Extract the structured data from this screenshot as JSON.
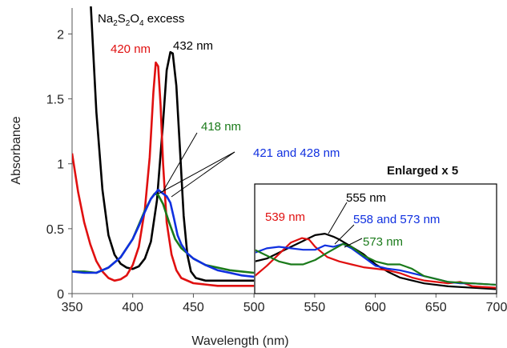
{
  "chart_data": {
    "type": "line",
    "xlabel": "Wavelength (nm)",
    "ylabel": "Absorbance",
    "xlim": [
      350,
      700
    ],
    "ylim": [
      0,
      2.2
    ],
    "x_ticks": [
      "350",
      "400",
      "450",
      "500",
      "550",
      "600",
      "650",
      "700"
    ],
    "y_ticks": [
      "0",
      "0.5",
      "1",
      "1.5",
      "2"
    ],
    "grid": false,
    "colors": {
      "black": "#000000",
      "red": "#e01010",
      "green": "#1a7a1a",
      "blue": "#1030e0"
    },
    "main_series": [
      {
        "color": "black",
        "points": [
          [
            350,
            3.0
          ],
          [
            360,
            2.6
          ],
          [
            365,
            2.3
          ],
          [
            370,
            1.4
          ],
          [
            375,
            0.8
          ],
          [
            380,
            0.45
          ],
          [
            385,
            0.3
          ],
          [
            390,
            0.23
          ],
          [
            395,
            0.2
          ],
          [
            400,
            0.19
          ],
          [
            405,
            0.21
          ],
          [
            410,
            0.27
          ],
          [
            415,
            0.4
          ],
          [
            420,
            0.72
          ],
          [
            425,
            1.32
          ],
          [
            428,
            1.72
          ],
          [
            431,
            1.86
          ],
          [
            433,
            1.85
          ],
          [
            436,
            1.6
          ],
          [
            439,
            1.1
          ],
          [
            442,
            0.6
          ],
          [
            445,
            0.3
          ],
          [
            448,
            0.17
          ],
          [
            452,
            0.12
          ],
          [
            460,
            0.1
          ],
          [
            480,
            0.1
          ],
          [
            500,
            0.1
          ]
        ]
      },
      {
        "color": "red",
        "points": [
          [
            350,
            1.08
          ],
          [
            355,
            0.78
          ],
          [
            360,
            0.55
          ],
          [
            365,
            0.38
          ],
          [
            370,
            0.25
          ],
          [
            375,
            0.17
          ],
          [
            380,
            0.12
          ],
          [
            385,
            0.1
          ],
          [
            390,
            0.11
          ],
          [
            395,
            0.14
          ],
          [
            400,
            0.22
          ],
          [
            405,
            0.36
          ],
          [
            410,
            0.65
          ],
          [
            414,
            1.05
          ],
          [
            417,
            1.55
          ],
          [
            419,
            1.78
          ],
          [
            421,
            1.75
          ],
          [
            423,
            1.45
          ],
          [
            425,
            1.0
          ],
          [
            428,
            0.55
          ],
          [
            432,
            0.3
          ],
          [
            436,
            0.18
          ],
          [
            440,
            0.12
          ],
          [
            450,
            0.08
          ],
          [
            470,
            0.06
          ],
          [
            500,
            0.06
          ]
        ]
      },
      {
        "color": "green",
        "points": [
          [
            350,
            0.17
          ],
          [
            360,
            0.17
          ],
          [
            370,
            0.16
          ],
          [
            380,
            0.2
          ],
          [
            390,
            0.28
          ],
          [
            400,
            0.42
          ],
          [
            405,
            0.53
          ],
          [
            410,
            0.64
          ],
          [
            415,
            0.73
          ],
          [
            418,
            0.77
          ],
          [
            421,
            0.76
          ],
          [
            425,
            0.69
          ],
          [
            430,
            0.55
          ],
          [
            435,
            0.42
          ],
          [
            440,
            0.35
          ],
          [
            450,
            0.27
          ],
          [
            460,
            0.22
          ],
          [
            470,
            0.2
          ],
          [
            480,
            0.18
          ],
          [
            490,
            0.17
          ],
          [
            500,
            0.16
          ]
        ]
      },
      {
        "color": "blue",
        "points": [
          [
            350,
            0.17
          ],
          [
            360,
            0.16
          ],
          [
            370,
            0.16
          ],
          [
            380,
            0.2
          ],
          [
            390,
            0.28
          ],
          [
            400,
            0.42
          ],
          [
            405,
            0.52
          ],
          [
            410,
            0.63
          ],
          [
            415,
            0.73
          ],
          [
            421,
            0.8
          ],
          [
            425,
            0.77
          ],
          [
            428,
            0.75
          ],
          [
            431,
            0.7
          ],
          [
            434,
            0.58
          ],
          [
            437,
            0.45
          ],
          [
            440,
            0.38
          ],
          [
            445,
            0.31
          ],
          [
            450,
            0.27
          ],
          [
            460,
            0.22
          ],
          [
            470,
            0.18
          ],
          [
            480,
            0.16
          ],
          [
            490,
            0.14
          ],
          [
            500,
            0.13
          ]
        ]
      }
    ],
    "inset": {
      "title": "Enlarged x 5",
      "xlim": [
        500,
        700
      ],
      "ylim": [
        0,
        0.75
      ],
      "series": [
        {
          "color": "black",
          "points": [
            [
              500,
              0.22
            ],
            [
              510,
              0.24
            ],
            [
              520,
              0.28
            ],
            [
              530,
              0.32
            ],
            [
              540,
              0.36
            ],
            [
              550,
              0.4
            ],
            [
              558,
              0.41
            ],
            [
              565,
              0.39
            ],
            [
              570,
              0.37
            ],
            [
              580,
              0.32
            ],
            [
              590,
              0.27
            ],
            [
              600,
              0.2
            ],
            [
              610,
              0.15
            ],
            [
              620,
              0.11
            ],
            [
              630,
              0.09
            ],
            [
              640,
              0.07
            ],
            [
              660,
              0.05
            ],
            [
              680,
              0.04
            ],
            [
              700,
              0.03
            ]
          ]
        },
        {
          "color": "red",
          "points": [
            [
              500,
              0.12
            ],
            [
              510,
              0.19
            ],
            [
              520,
              0.27
            ],
            [
              530,
              0.35
            ],
            [
              539,
              0.38
            ],
            [
              545,
              0.37
            ],
            [
              550,
              0.32
            ],
            [
              560,
              0.25
            ],
            [
              570,
              0.22
            ],
            [
              580,
              0.2
            ],
            [
              590,
              0.18
            ],
            [
              600,
              0.17
            ],
            [
              610,
              0.16
            ],
            [
              620,
              0.14
            ],
            [
              630,
              0.11
            ],
            [
              640,
              0.09
            ],
            [
              650,
              0.08
            ],
            [
              660,
              0.07
            ],
            [
              670,
              0.08
            ],
            [
              680,
              0.05
            ],
            [
              700,
              0.04
            ]
          ]
        },
        {
          "color": "blue",
          "points": [
            [
              500,
              0.28
            ],
            [
              510,
              0.31
            ],
            [
              520,
              0.32
            ],
            [
              530,
              0.31
            ],
            [
              540,
              0.3
            ],
            [
              550,
              0.3
            ],
            [
              558,
              0.33
            ],
            [
              565,
              0.32
            ],
            [
              573,
              0.34
            ],
            [
              580,
              0.31
            ],
            [
              590,
              0.25
            ],
            [
              600,
              0.19
            ],
            [
              610,
              0.17
            ],
            [
              620,
              0.16
            ],
            [
              630,
              0.14
            ],
            [
              640,
              0.12
            ],
            [
              650,
              0.1
            ],
            [
              660,
              0.08
            ],
            [
              670,
              0.07
            ],
            [
              680,
              0.07
            ],
            [
              700,
              0.06
            ]
          ]
        },
        {
          "color": "green",
          "points": [
            [
              500,
              0.3
            ],
            [
              510,
              0.26
            ],
            [
              520,
              0.22
            ],
            [
              530,
              0.2
            ],
            [
              540,
              0.2
            ],
            [
              550,
              0.23
            ],
            [
              560,
              0.28
            ],
            [
              573,
              0.34
            ],
            [
              580,
              0.32
            ],
            [
              590,
              0.26
            ],
            [
              600,
              0.22
            ],
            [
              610,
              0.2
            ],
            [
              620,
              0.2
            ],
            [
              630,
              0.17
            ],
            [
              640,
              0.12
            ],
            [
              650,
              0.1
            ],
            [
              660,
              0.08
            ],
            [
              680,
              0.07
            ],
            [
              700,
              0.06
            ]
          ]
        }
      ]
    },
    "annotations": [
      {
        "text": "Na2S2O4 excess",
        "color": "black"
      },
      {
        "text": "420 nm",
        "color": "red"
      },
      {
        "text": "432 nm",
        "color": "black"
      },
      {
        "text": "418 nm",
        "color": "green"
      },
      {
        "text": "421 and 428 nm",
        "color": "blue"
      },
      {
        "text": "555 nm",
        "color": "black"
      },
      {
        "text": "539 nm",
        "color": "red"
      },
      {
        "text": "558 and 573 nm",
        "color": "blue"
      },
      {
        "text": "573 nm",
        "color": "green"
      }
    ]
  }
}
